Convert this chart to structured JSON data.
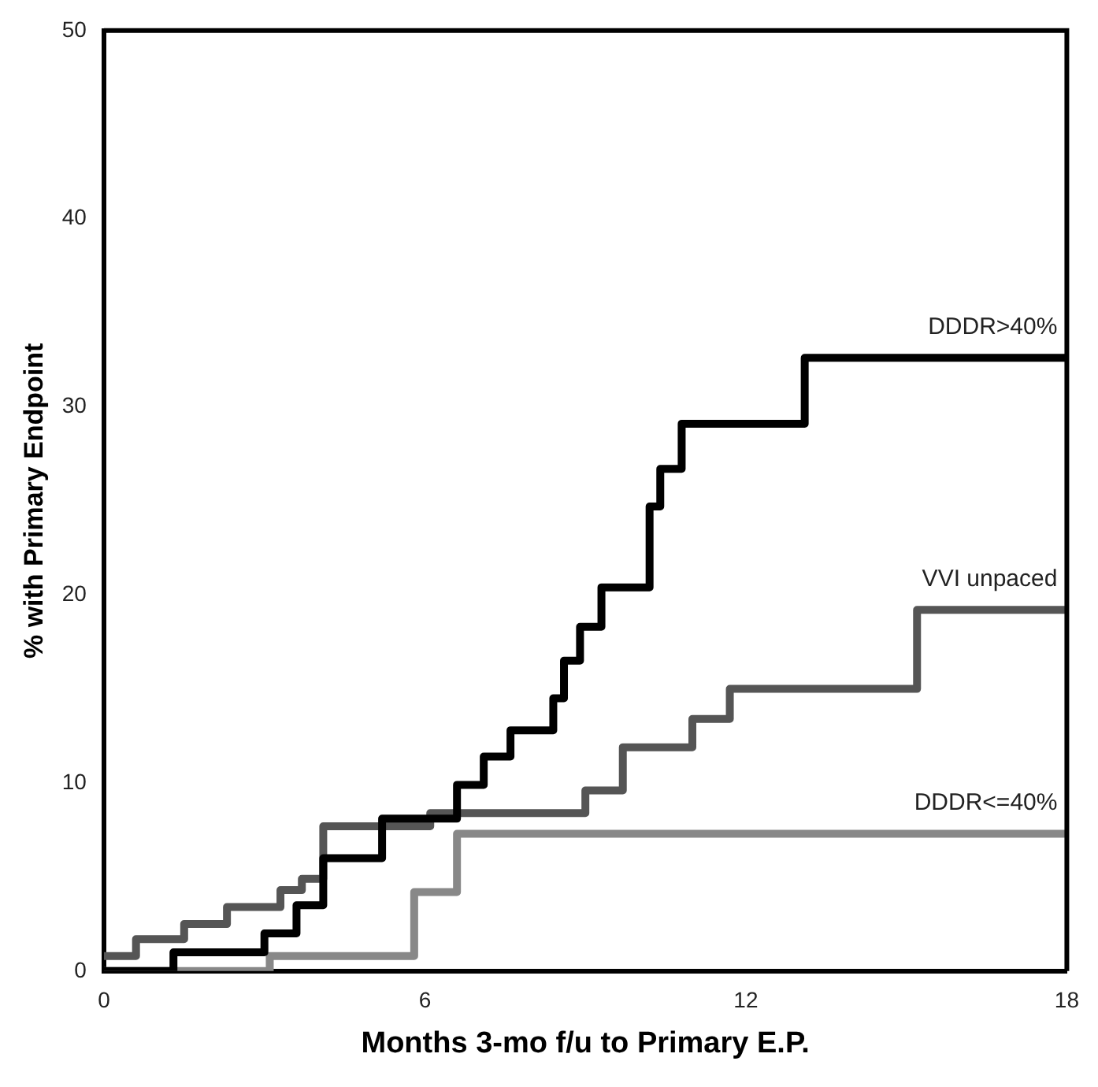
{
  "chart_data": {
    "type": "step",
    "xlabel": "Months 3-mo f/u to Primary E.P.",
    "ylabel": "% with Primary Endpoint",
    "xlim": [
      0,
      18
    ],
    "xticks": [
      0,
      6,
      12,
      18
    ],
    "ylim": [
      0,
      50
    ],
    "yticks": [
      0,
      10,
      20,
      30,
      40,
      50
    ],
    "grid": false,
    "legend": false,
    "marker": "none",
    "line_style": "solid",
    "series": [
      {
        "name": "DDDR>40%",
        "color": "#000000",
        "x": [
          0,
          1.3,
          3.0,
          3.6,
          4.1,
          5.2,
          6.6,
          7.1,
          7.6,
          8.4,
          8.6,
          8.9,
          9.3,
          10.2,
          10.4,
          10.8,
          13.1,
          18
        ],
        "values": [
          0,
          1,
          2,
          3.5,
          6,
          8.1,
          9.9,
          11.4,
          12.8,
          14.5,
          16.5,
          18.3,
          20.4,
          24.7,
          26.7,
          29.1,
          32.6,
          32.6
        ]
      },
      {
        "name": "VVI unpaced",
        "color": "#555555",
        "x": [
          0,
          0.6,
          1.5,
          2.3,
          3.3,
          3.7,
          4.1,
          6.1,
          9.0,
          9.7,
          11.0,
          11.7,
          15.2,
          18
        ],
        "values": [
          0.8,
          1.7,
          2.5,
          3.4,
          4.3,
          4.9,
          7.7,
          8.4,
          9.6,
          11.9,
          13.4,
          15,
          19.2,
          19.2
        ]
      },
      {
        "name": "DDDR<=40%",
        "color": "#888888",
        "x": [
          0,
          3.1,
          5.8,
          6.6,
          18
        ],
        "values": [
          0,
          0.8,
          4.2,
          7.3,
          7.3
        ]
      }
    ]
  }
}
